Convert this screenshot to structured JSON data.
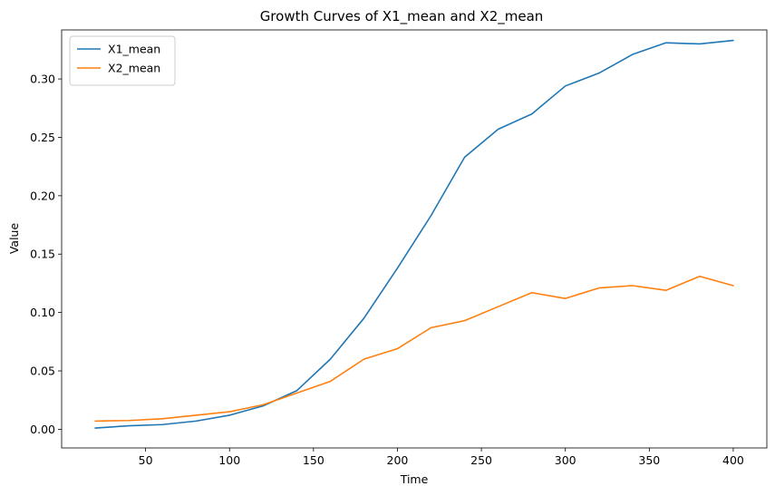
{
  "chart_data": {
    "type": "line",
    "title": "Growth Curves of X1_mean and X2_mean",
    "xlabel": "Time",
    "ylabel": "Value",
    "xlim": [
      0,
      420
    ],
    "ylim": [
      -0.016,
      0.342
    ],
    "xticks": [
      50,
      100,
      150,
      200,
      250,
      300,
      350,
      400
    ],
    "yticks": [
      0.0,
      0.05,
      0.1,
      0.15,
      0.2,
      0.25,
      0.3
    ],
    "xtick_labels": [
      "50",
      "100",
      "150",
      "200",
      "250",
      "300",
      "350",
      "400"
    ],
    "ytick_labels": [
      "0.00",
      "0.05",
      "0.10",
      "0.15",
      "0.20",
      "0.25",
      "0.30"
    ],
    "grid": false,
    "legend_position": "top-left",
    "x": [
      20,
      40,
      60,
      80,
      100,
      120,
      140,
      160,
      180,
      200,
      220,
      240,
      260,
      280,
      300,
      320,
      340,
      360,
      380,
      400
    ],
    "series": [
      {
        "name": "X1_mean",
        "color": "#1f77b4",
        "values": [
          0.001,
          0.003,
          0.004,
          0.007,
          0.012,
          0.02,
          0.033,
          0.06,
          0.095,
          0.138,
          0.183,
          0.233,
          0.257,
          0.27,
          0.294,
          0.305,
          0.321,
          0.331,
          0.33,
          0.333
        ]
      },
      {
        "name": "X2_mean",
        "color": "#ff7f0e",
        "values": [
          0.007,
          0.0075,
          0.009,
          0.012,
          0.015,
          0.021,
          0.031,
          0.041,
          0.06,
          0.069,
          0.087,
          0.093,
          0.105,
          0.117,
          0.112,
          0.121,
          0.123,
          0.119,
          0.131,
          0.123
        ]
      }
    ]
  }
}
